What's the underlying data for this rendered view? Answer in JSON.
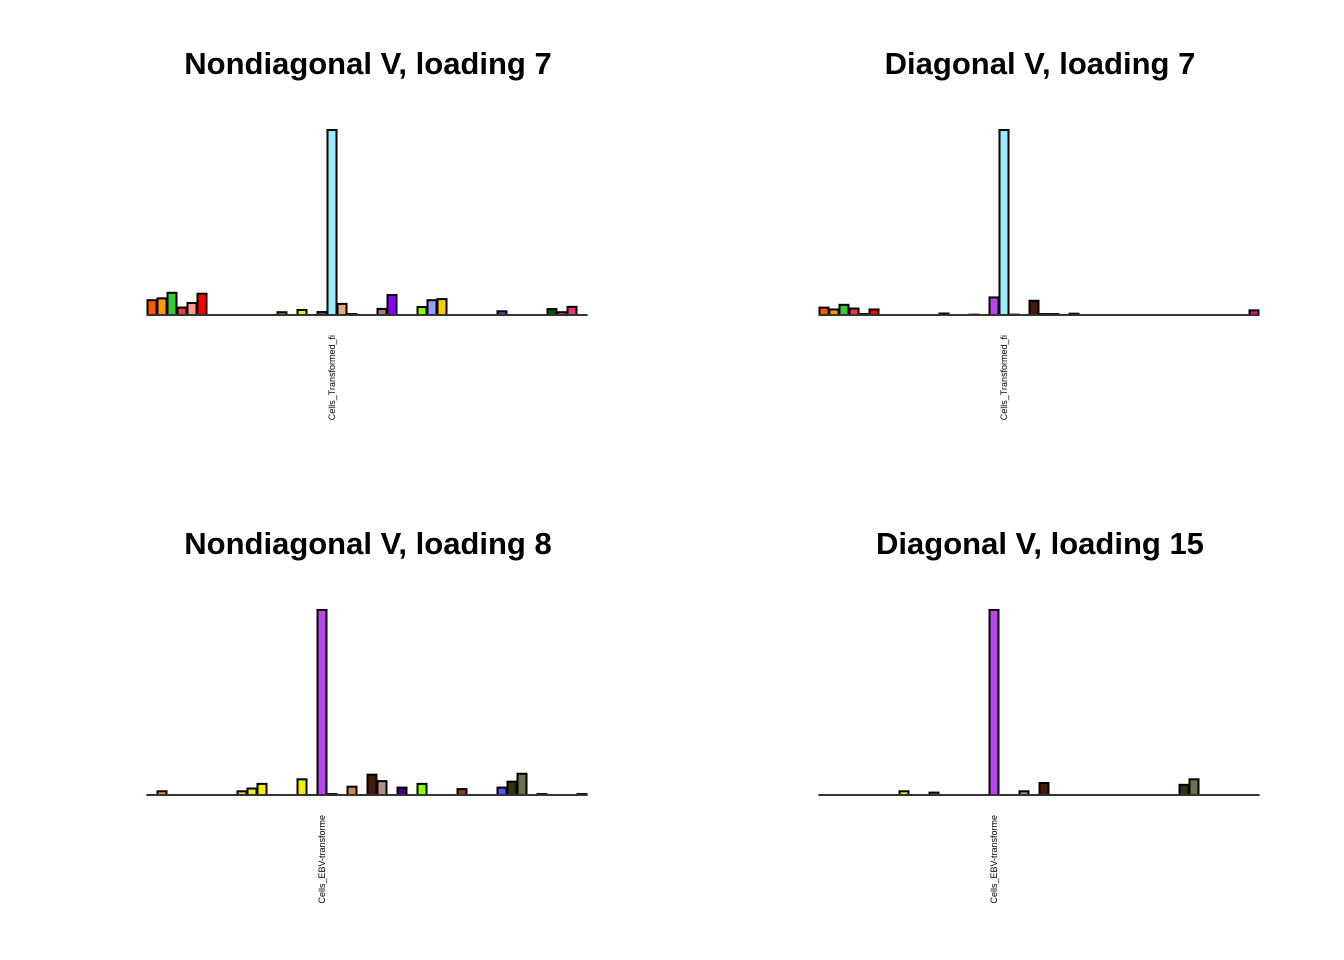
{
  "chart_data": [
    {
      "type": "bar",
      "title": "Nondiagonal V, loading 7",
      "xlabel": "",
      "ylabel": "",
      "n_bars": 44,
      "highlight_label": "Cells_Transformed_fi",
      "highlight_index": 18,
      "ylim": [
        0,
        1
      ],
      "values": [
        0.08,
        0.09,
        0.12,
        0.04,
        0.065,
        0.115,
        0,
        0,
        0,
        0,
        0,
        0,
        0,
        0.015,
        0,
        0.027,
        0,
        0.016,
        1.0,
        0.06,
        0.005,
        0,
        0,
        0.033,
        0.108,
        0,
        0,
        0.043,
        0.08,
        0.086,
        0,
        0,
        0,
        0,
        0,
        0.02,
        0,
        0,
        0,
        0,
        0.032,
        0.015,
        0.044,
        0
      ],
      "colors": [
        "#FF5A00",
        "#FF9A00",
        "#33CC33",
        "#EE3B3B",
        "#FF9988",
        "#FF0000",
        "#000000",
        "#000000",
        "#000000",
        "#000000",
        "#000000",
        "#000000",
        "#000000",
        "#999900",
        "#000000",
        "#EEEE00",
        "#000000",
        "#9933CC",
        "#99EEFF",
        "#E8A870",
        "#000000",
        "#000000",
        "#000000",
        "#A08070",
        "#8800FF",
        "#000000",
        "#000000",
        "#88FF00",
        "#9999FF",
        "#FFCC00",
        "#000000",
        "#000000",
        "#000000",
        "#000000",
        "#000000",
        "#4444DD",
        "#000000",
        "#000000",
        "#000000",
        "#000000",
        "#005500",
        "#EE33EE",
        "#EE3377",
        "#000000"
      ]
    },
    {
      "type": "bar",
      "title": "Diagonal V, loading 7",
      "xlabel": "",
      "ylabel": "",
      "n_bars": 44,
      "highlight_label": "Cells_Transformed_fi",
      "highlight_index": 18,
      "ylim": [
        0,
        1
      ],
      "values": [
        0.04,
        0.03,
        0.055,
        0.035,
        0.005,
        0.03,
        0,
        0,
        0,
        0,
        0,
        0,
        0.008,
        0,
        0,
        0.002,
        0,
        0.095,
        1.0,
        0.002,
        0,
        0.077,
        0.005,
        0.005,
        0,
        0.007,
        0,
        0,
        0,
        0,
        0,
        0,
        0,
        0,
        0,
        0,
        0,
        0,
        0,
        0,
        0,
        0,
        0,
        0.025
      ],
      "colors": [
        "#FF5A00",
        "#FF9A00",
        "#33CC33",
        "#EE3B3B",
        "#000000",
        "#FF0000",
        "#000000",
        "#000000",
        "#000000",
        "#000000",
        "#000000",
        "#000000",
        "#555500",
        "#000000",
        "#000000",
        "#000000",
        "#000000",
        "#BB44EE",
        "#99EEFF",
        "#000000",
        "#000000",
        "#4A1A08",
        "#000000",
        "#000000",
        "#000000",
        "#000000",
        "#000000",
        "#000000",
        "#000000",
        "#000000",
        "#000000",
        "#000000",
        "#000000",
        "#000000",
        "#000000",
        "#000000",
        "#000000",
        "#000000",
        "#000000",
        "#000000",
        "#000000",
        "#000000",
        "#000000",
        "#EE1188"
      ]
    },
    {
      "type": "bar",
      "title": "Nondiagonal V, loading 8",
      "xlabel": "",
      "ylabel": "",
      "n_bars": 44,
      "highlight_label": "Cells_EBV-transforme",
      "highlight_index": 17,
      "ylim": [
        0,
        1
      ],
      "values": [
        0,
        0.02,
        0,
        0,
        0,
        0,
        0,
        0,
        0,
        0.02,
        0.035,
        0.06,
        0,
        0,
        0,
        0.085,
        0,
        1.0,
        0.005,
        0,
        0.045,
        0,
        0.11,
        0.075,
        0,
        0.04,
        0,
        0.06,
        0,
        0,
        0,
        0.032,
        0,
        0,
        0,
        0.04,
        0.072,
        0.115,
        0,
        0.005,
        0,
        0,
        0,
        0.005
      ],
      "colors": [
        "#000000",
        "#FF9A00",
        "#000000",
        "#000000",
        "#000000",
        "#000000",
        "#000000",
        "#000000",
        "#000000",
        "#DDDD22",
        "#EEEE22",
        "#EEEE00",
        "#000000",
        "#000000",
        "#000000",
        "#EEEE00",
        "#000000",
        "#BB44EE",
        "#000000",
        "#000000",
        "#CC8844",
        "#000000",
        "#4A1A08",
        "#B09080",
        "#000000",
        "#440088",
        "#000000",
        "#88FF00",
        "#000000",
        "#000000",
        "#000000",
        "#884422",
        "#000000",
        "#000000",
        "#000000",
        "#5555EE",
        "#333311",
        "#667744",
        "#000000",
        "#000000",
        "#000000",
        "#000000",
        "#000000",
        "#000000"
      ]
    },
    {
      "type": "bar",
      "title": "Diagonal V, loading 15",
      "xlabel": "",
      "ylabel": "",
      "n_bars": 44,
      "highlight_label": "Cells_EBV-transforme",
      "highlight_index": 17,
      "ylim": [
        0,
        1
      ],
      "values": [
        0,
        0,
        0,
        0,
        0,
        0,
        0,
        0,
        0.02,
        0,
        0,
        0.013,
        0,
        0,
        0,
        0,
        0,
        1.0,
        0,
        0,
        0.02,
        0,
        0.065,
        0,
        0,
        0,
        0,
        0,
        0,
        0,
        0,
        0,
        0,
        0,
        0,
        0,
        0.055,
        0.085,
        0,
        0,
        0,
        0,
        0,
        0
      ],
      "colors": [
        "#000000",
        "#000000",
        "#000000",
        "#000000",
        "#000000",
        "#000000",
        "#000000",
        "#000000",
        "#EEEE00",
        "#000000",
        "#000000",
        "#999922",
        "#000000",
        "#000000",
        "#000000",
        "#000000",
        "#000000",
        "#BB44EE",
        "#000000",
        "#000000",
        "#CC8844",
        "#000000",
        "#4A1A08",
        "#000000",
        "#000000",
        "#000000",
        "#000000",
        "#000000",
        "#000000",
        "#000000",
        "#000000",
        "#000000",
        "#000000",
        "#000000",
        "#000000",
        "#000000",
        "#333311",
        "#667744",
        "#000000",
        "#000000",
        "#000000",
        "#000000",
        "#000000",
        "#000000"
      ]
    }
  ]
}
